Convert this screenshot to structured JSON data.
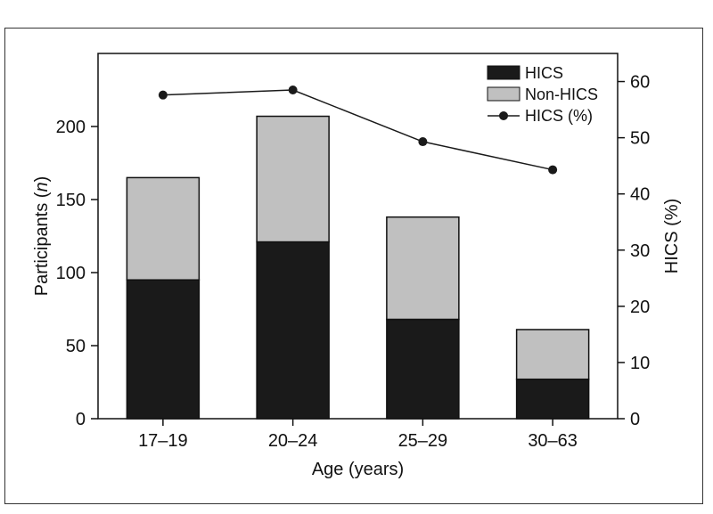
{
  "chart_data": {
    "type": "bar",
    "stacked": true,
    "categories": [
      "17–19",
      "20–24",
      "25–29",
      "30–63"
    ],
    "xlabel": "Age (years)",
    "ylabel_prefix": "Participants (",
    "ylabel_italic": "n",
    "ylabel_suffix": ")",
    "y2label": "HICS (%)",
    "ylim": [
      0,
      250
    ],
    "y2lim": [
      0,
      65
    ],
    "yticks": [
      0,
      50,
      100,
      150,
      200
    ],
    "y2ticks": [
      0,
      10,
      20,
      30,
      40,
      50,
      60
    ],
    "series": [
      {
        "name": "HICS",
        "kind": "bar",
        "axis": "left",
        "color": "#1a1a1a",
        "values": [
          95,
          121,
          68,
          27
        ]
      },
      {
        "name": "Non-HICS",
        "kind": "bar",
        "axis": "left",
        "color": "#c0c0c0",
        "values": [
          70,
          86,
          70,
          34
        ]
      },
      {
        "name": "HICS (%)",
        "kind": "line",
        "axis": "right",
        "color": "#1a1a1a",
        "marker": "circle",
        "values": [
          57.6,
          58.5,
          49.3,
          44.3
        ]
      }
    ],
    "legend_position": "top-right",
    "grid": false
  }
}
